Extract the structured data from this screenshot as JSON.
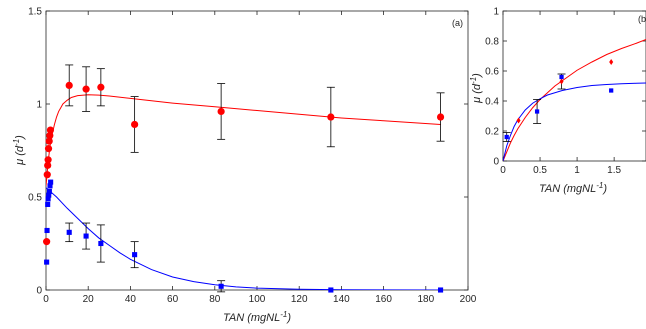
{
  "chart_data": [
    {
      "type": "scatter",
      "panel_label": "(a)",
      "xlabel": "TAN (mgNL",
      "xlabel_sup": "-1",
      "xlabel_close": ")",
      "ylabel": "μ (d",
      "ylabel_sup": "-1",
      "ylabel_close": ")",
      "xlim": [
        0,
        200
      ],
      "ylim": [
        0,
        1.5
      ],
      "xticks": [
        0,
        20,
        40,
        60,
        80,
        100,
        120,
        140,
        160,
        180,
        200
      ],
      "yticks": [
        0,
        0.5,
        1,
        1.5
      ],
      "xtick_labels": [
        "0",
        "20",
        "40",
        "60",
        "80",
        "100",
        "120",
        "140",
        "160",
        "180",
        "200"
      ],
      "ytick_labels": [
        "0",
        "0.5",
        "1",
        "1.5"
      ],
      "series": [
        {
          "marker": "circle",
          "color": "#ff0000",
          "points": [
            {
              "x": 0.3,
              "y": 0.26
            },
            {
              "x": 0.6,
              "y": 0.62
            },
            {
              "x": 0.8,
              "y": 0.67
            },
            {
              "x": 1.0,
              "y": 0.7
            },
            {
              "x": 1.2,
              "y": 0.76
            },
            {
              "x": 1.5,
              "y": 0.8
            },
            {
              "x": 1.8,
              "y": 0.83
            },
            {
              "x": 2.1,
              "y": 0.86
            },
            {
              "x": 11,
              "y": 1.1,
              "err": 0.11
            },
            {
              "x": 19,
              "y": 1.08,
              "err": 0.12
            },
            {
              "x": 26,
              "y": 1.09,
              "err": 0.1
            },
            {
              "x": 42,
              "y": 0.89,
              "err": 0.15
            },
            {
              "x": 83,
              "y": 0.96,
              "err": 0.15
            },
            {
              "x": 135,
              "y": 0.93,
              "err": 0.16
            },
            {
              "x": 187,
              "y": 0.93,
              "err": 0.13
            }
          ],
          "fit": [
            [
              0,
              0.56
            ],
            [
              0.5,
              0.62
            ],
            [
              1,
              0.69
            ],
            [
              2,
              0.78
            ],
            [
              3,
              0.84
            ],
            [
              4,
              0.89
            ],
            [
              5,
              0.93
            ],
            [
              6,
              0.96
            ],
            [
              7,
              0.98
            ],
            [
              8,
              1.0
            ],
            [
              10,
              1.02
            ],
            [
              12,
              1.035
            ],
            [
              15,
              1.045
            ],
            [
              20,
              1.05
            ],
            [
              25,
              1.048
            ],
            [
              30,
              1.043
            ],
            [
              40,
              1.03
            ],
            [
              60,
              1.005
            ],
            [
              80,
              0.985
            ],
            [
              100,
              0.965
            ],
            [
              120,
              0.945
            ],
            [
              140,
              0.925
            ],
            [
              160,
              0.91
            ],
            [
              187,
              0.89
            ]
          ]
        },
        {
          "marker": "square",
          "color": "#0000ff",
          "points": [
            {
              "x": 0.3,
              "y": 0.15
            },
            {
              "x": 0.5,
              "y": 0.32
            },
            {
              "x": 0.8,
              "y": 0.46
            },
            {
              "x": 1.0,
              "y": 0.49
            },
            {
              "x": 1.3,
              "y": 0.51
            },
            {
              "x": 1.6,
              "y": 0.53
            },
            {
              "x": 1.9,
              "y": 0.56
            },
            {
              "x": 2.2,
              "y": 0.58
            },
            {
              "x": 11,
              "y": 0.31,
              "err": 0.05
            },
            {
              "x": 19,
              "y": 0.29,
              "err": 0.07
            },
            {
              "x": 26,
              "y": 0.25,
              "err": 0.1
            },
            {
              "x": 42,
              "y": 0.19,
              "err": 0.07
            },
            {
              "x": 83,
              "y": 0.02,
              "err": 0.03
            },
            {
              "x": 135,
              "y": 0.0
            },
            {
              "x": 187,
              "y": 0.0
            }
          ],
          "fit": [
            [
              0,
              0.55
            ],
            [
              5,
              0.5
            ],
            [
              10,
              0.44
            ],
            [
              15,
              0.385
            ],
            [
              20,
              0.33
            ],
            [
              25,
              0.28
            ],
            [
              30,
              0.24
            ],
            [
              35,
              0.2
            ],
            [
              40,
              0.165
            ],
            [
              50,
              0.11
            ],
            [
              60,
              0.07
            ],
            [
              70,
              0.045
            ],
            [
              80,
              0.028
            ],
            [
              90,
              0.017
            ],
            [
              100,
              0.01
            ],
            [
              120,
              0.004
            ],
            [
              140,
              0.0015
            ],
            [
              187,
              0.0
            ]
          ]
        }
      ]
    },
    {
      "type": "scatter",
      "panel_label": "(b",
      "xlabel": "TAN (mgNL",
      "xlabel_sup": "-1",
      "xlabel_close": ")",
      "ylabel": "μ (d",
      "ylabel_sup": "-1",
      "ylabel_close": ")",
      "xlim": [
        0,
        1.93
      ],
      "ylim": [
        0,
        1
      ],
      "xticks": [
        0,
        0.5,
        1,
        1.5
      ],
      "yticks": [
        0,
        0.2,
        0.4,
        0.6,
        0.8,
        1
      ],
      "xtick_labels": [
        "0",
        "0.5",
        "1",
        "1.5"
      ],
      "ytick_labels": [
        "0",
        "0.2",
        "0.4",
        "0.6",
        "0.8",
        "1"
      ],
      "series": [
        {
          "marker": "diamond",
          "color": "#ff0000",
          "points": [
            {
              "x": 0.21,
              "y": 0.27
            },
            {
              "x": 0.79,
              "y": 0.53,
              "err": 0.05
            },
            {
              "x": 1.46,
              "y": 0.66
            }
          ],
          "fit": [
            [
              0,
              0
            ],
            [
              0.05,
              0.06
            ],
            [
              0.1,
              0.12
            ],
            [
              0.15,
              0.17
            ],
            [
              0.2,
              0.215
            ],
            [
              0.3,
              0.29
            ],
            [
              0.4,
              0.355
            ],
            [
              0.5,
              0.41
            ],
            [
              0.6,
              0.455
            ],
            [
              0.7,
              0.5
            ],
            [
              0.8,
              0.535
            ],
            [
              1.0,
              0.605
            ],
            [
              1.2,
              0.66
            ],
            [
              1.4,
              0.71
            ],
            [
              1.6,
              0.75
            ],
            [
              1.8,
              0.785
            ],
            [
              1.93,
              0.81
            ]
          ]
        },
        {
          "marker": "square",
          "color": "#0000ff",
          "points": [
            {
              "x": 0.05,
              "y": 0.16,
              "err": 0.03
            },
            {
              "x": 0.46,
              "y": 0.33,
              "err": 0.08
            },
            {
              "x": 0.79,
              "y": 0.56
            },
            {
              "x": 1.46,
              "y": 0.47
            }
          ],
          "fit": [
            [
              0,
              0
            ],
            [
              0.05,
              0.1
            ],
            [
              0.1,
              0.17
            ],
            [
              0.15,
              0.23
            ],
            [
              0.2,
              0.275
            ],
            [
              0.3,
              0.34
            ],
            [
              0.4,
              0.385
            ],
            [
              0.5,
              0.415
            ],
            [
              0.6,
              0.44
            ],
            [
              0.7,
              0.455
            ],
            [
              0.8,
              0.47
            ],
            [
              1.0,
              0.49
            ],
            [
              1.2,
              0.503
            ],
            [
              1.4,
              0.51
            ],
            [
              1.6,
              0.515
            ],
            [
              1.8,
              0.518
            ],
            [
              1.93,
              0.52
            ]
          ]
        }
      ]
    }
  ]
}
